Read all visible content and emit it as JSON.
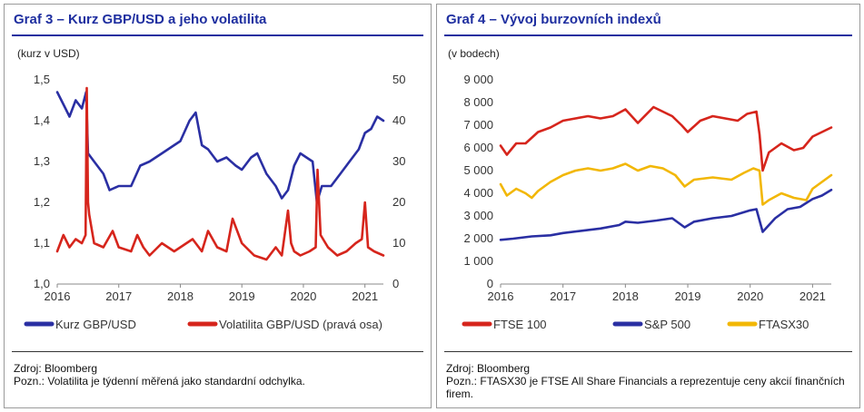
{
  "panels": {
    "left": {
      "title": "Graf 3 – Kurz GBP/USD a jeho volatilita",
      "unit": "(kurz v USD)",
      "source": "Zdroj: Bloomberg",
      "note": "Pozn.: Volatilita je týdenní měřená jako standardní odchylka."
    },
    "right": {
      "title": "Graf 4 – Vývoj burzovních indexů",
      "unit": "(v bodech)",
      "source": "Zdroj: Bloomberg",
      "note": "Pozn.: FTASX30 je FTSE All Share Financials a reprezentuje ceny akcií finančních firem."
    }
  },
  "chart_data": [
    {
      "type": "line",
      "title": "Graf 3 – Kurz GBP/USD a jeho volatilita",
      "ylabel": "(kurz v USD)",
      "x_ticks": [
        "2016",
        "2017",
        "2018",
        "2019",
        "2020",
        "2021"
      ],
      "xlim": [
        2016.0,
        2021.3
      ],
      "ylim": [
        1.0,
        1.5
      ],
      "y_ticks": [
        "1,0",
        "1,1",
        "1,2",
        "1,3",
        "1,4",
        "1,5"
      ],
      "y2lim": [
        0,
        50
      ],
      "y2_ticks": [
        "0",
        "10",
        "20",
        "30",
        "40",
        "50"
      ],
      "grid": false,
      "legend_position": "bottom",
      "series": [
        {
          "name": "Kurz GBP/USD",
          "axis": "left",
          "color": "#2a2fa3",
          "x": [
            2016.0,
            2016.1,
            2016.2,
            2016.3,
            2016.4,
            2016.47,
            2016.5,
            2016.6,
            2016.75,
            2016.85,
            2017.0,
            2017.2,
            2017.35,
            2017.5,
            2017.7,
            2017.9,
            2018.0,
            2018.15,
            2018.25,
            2018.35,
            2018.45,
            2018.6,
            2018.75,
            2018.9,
            2019.0,
            2019.15,
            2019.25,
            2019.4,
            2019.55,
            2019.65,
            2019.75,
            2019.85,
            2019.95,
            2020.05,
            2020.15,
            2020.22,
            2020.3,
            2020.45,
            2020.6,
            2020.75,
            2020.9,
            2021.0,
            2021.1,
            2021.2,
            2021.3
          ],
          "values": [
            1.47,
            1.44,
            1.41,
            1.45,
            1.43,
            1.47,
            1.32,
            1.3,
            1.27,
            1.23,
            1.24,
            1.24,
            1.29,
            1.3,
            1.32,
            1.34,
            1.35,
            1.4,
            1.42,
            1.34,
            1.33,
            1.3,
            1.31,
            1.29,
            1.28,
            1.31,
            1.32,
            1.27,
            1.24,
            1.21,
            1.23,
            1.29,
            1.32,
            1.31,
            1.3,
            1.2,
            1.24,
            1.24,
            1.27,
            1.3,
            1.33,
            1.37,
            1.38,
            1.41,
            1.4
          ]
        },
        {
          "name": "Volatilita GBP/USD (pravá osa)",
          "axis": "right",
          "color": "#d6251c",
          "x": [
            2016.0,
            2016.1,
            2016.2,
            2016.3,
            2016.4,
            2016.46,
            2016.48,
            2016.5,
            2016.52,
            2016.6,
            2016.75,
            2016.9,
            2017.0,
            2017.2,
            2017.3,
            2017.4,
            2017.5,
            2017.7,
            2017.9,
            2018.0,
            2018.2,
            2018.35,
            2018.45,
            2018.6,
            2018.75,
            2018.85,
            2019.0,
            2019.2,
            2019.4,
            2019.55,
            2019.65,
            2019.75,
            2019.8,
            2019.85,
            2019.95,
            2020.1,
            2020.2,
            2020.23,
            2020.28,
            2020.4,
            2020.55,
            2020.7,
            2020.85,
            2020.95,
            2021.0,
            2021.05,
            2021.15,
            2021.3
          ],
          "values": [
            8,
            12,
            9,
            11,
            10,
            12,
            48,
            20,
            17,
            10,
            9,
            13,
            9,
            8,
            12,
            9,
            7,
            10,
            8,
            9,
            11,
            8,
            13,
            9,
            8,
            16,
            10,
            7,
            6,
            9,
            7,
            18,
            10,
            8,
            7,
            8,
            9,
            28,
            12,
            9,
            7,
            8,
            10,
            11,
            20,
            9,
            8,
            7
          ]
        }
      ]
    },
    {
      "type": "line",
      "title": "Graf 4 – Vývoj burzovních indexů",
      "ylabel": "(v bodech)",
      "x_ticks": [
        "2016",
        "2017",
        "2018",
        "2019",
        "2020",
        "2021"
      ],
      "xlim": [
        2016.0,
        2021.3
      ],
      "ylim": [
        0,
        9000
      ],
      "y_ticks": [
        "0",
        "1 000",
        "2 000",
        "3 000",
        "4 000",
        "5 000",
        "6 000",
        "7 000",
        "8 000",
        "9 000"
      ],
      "grid": false,
      "legend_position": "bottom",
      "series": [
        {
          "name": "FTSE 100",
          "color": "#d6251c",
          "x": [
            2016.0,
            2016.1,
            2016.25,
            2016.4,
            2016.6,
            2016.8,
            2017.0,
            2017.2,
            2017.4,
            2017.6,
            2017.8,
            2018.0,
            2018.2,
            2018.45,
            2018.6,
            2018.75,
            2018.9,
            2019.0,
            2019.2,
            2019.4,
            2019.6,
            2019.8,
            2019.95,
            2020.1,
            2020.15,
            2020.2,
            2020.3,
            2020.5,
            2020.7,
            2020.85,
            2021.0,
            2021.15,
            2021.3
          ],
          "values": [
            6100,
            5700,
            6200,
            6200,
            6700,
            6900,
            7200,
            7300,
            7400,
            7300,
            7400,
            7700,
            7100,
            7800,
            7600,
            7400,
            7000,
            6700,
            7200,
            7400,
            7300,
            7200,
            7500,
            7600,
            6600,
            5000,
            5800,
            6200,
            5900,
            6000,
            6500,
            6700,
            6900
          ]
        },
        {
          "name": "S&P 500",
          "color": "#2a2fa3",
          "x": [
            2016.0,
            2016.2,
            2016.5,
            2016.8,
            2017.0,
            2017.3,
            2017.6,
            2017.9,
            2018.0,
            2018.2,
            2018.5,
            2018.75,
            2018.95,
            2019.1,
            2019.4,
            2019.7,
            2020.0,
            2020.1,
            2020.2,
            2020.4,
            2020.6,
            2020.8,
            2021.0,
            2021.15,
            2021.3
          ],
          "values": [
            1950,
            2000,
            2100,
            2150,
            2250,
            2350,
            2450,
            2600,
            2750,
            2700,
            2800,
            2900,
            2500,
            2750,
            2900,
            3000,
            3250,
            3300,
            2300,
            2900,
            3300,
            3400,
            3750,
            3900,
            4150
          ]
        },
        {
          "name": "FTASX30",
          "color": "#f2b705",
          "x": [
            2016.0,
            2016.1,
            2016.25,
            2016.4,
            2016.5,
            2016.6,
            2016.8,
            2017.0,
            2017.2,
            2017.4,
            2017.6,
            2017.8,
            2018.0,
            2018.2,
            2018.4,
            2018.6,
            2018.8,
            2018.95,
            2019.1,
            2019.4,
            2019.7,
            2019.9,
            2020.05,
            2020.15,
            2020.2,
            2020.3,
            2020.5,
            2020.7,
            2020.9,
            2021.0,
            2021.15,
            2021.3
          ],
          "values": [
            4400,
            3900,
            4200,
            4000,
            3800,
            4100,
            4500,
            4800,
            5000,
            5100,
            5000,
            5100,
            5300,
            5000,
            5200,
            5100,
            4800,
            4300,
            4600,
            4700,
            4600,
            4900,
            5100,
            5000,
            3500,
            3700,
            4000,
            3800,
            3700,
            4200,
            4500,
            4800
          ]
        }
      ]
    }
  ]
}
